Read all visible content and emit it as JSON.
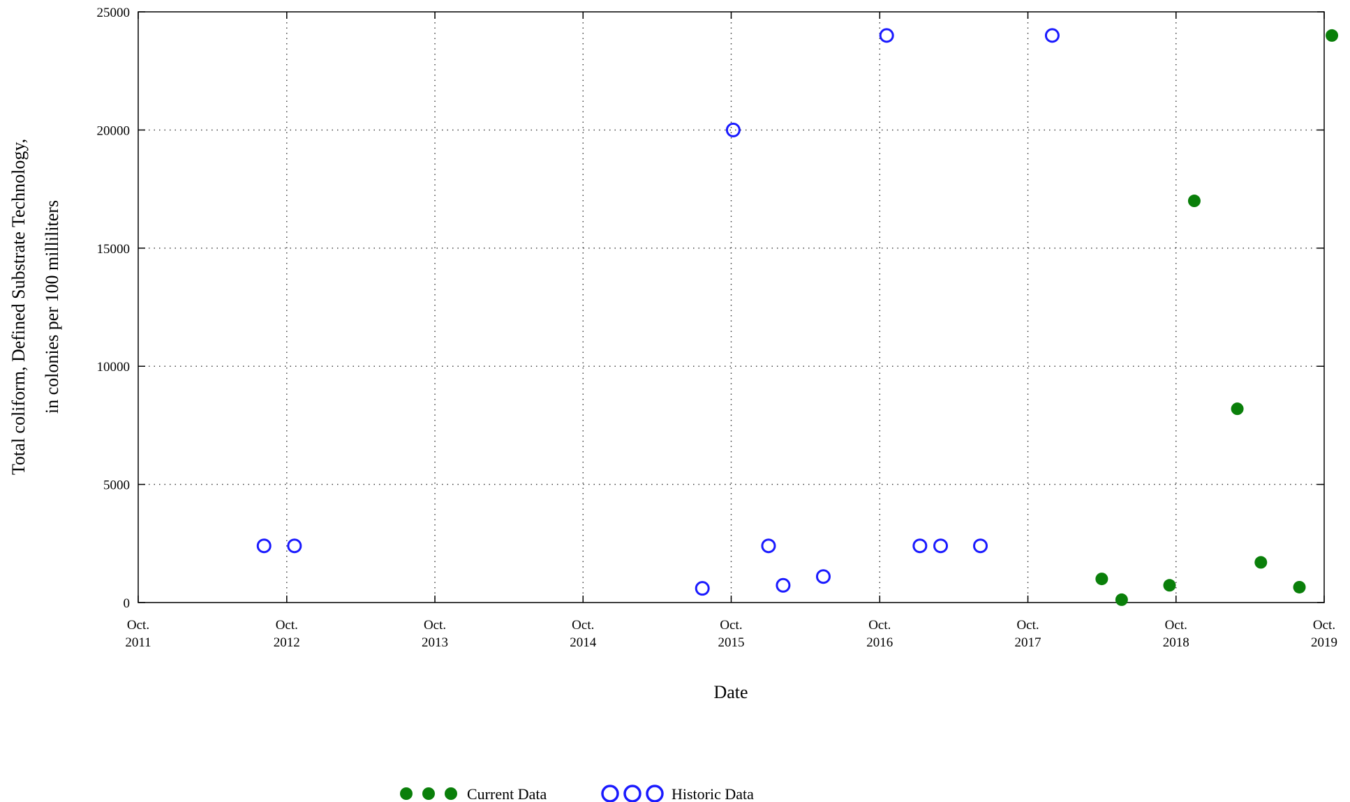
{
  "chart_data": {
    "type": "scatter",
    "title": "",
    "xlabel": "Date",
    "ylabel_lines": [
      "Total coliform, Defined Substrate Technology,",
      "in colonies per 100 milliliters"
    ],
    "xlim": [
      "2011-10-01",
      "2019-10-01"
    ],
    "ylim": [
      0,
      25000
    ],
    "grid": true,
    "grid_style": "dotted",
    "legend_position": "bottom-center",
    "x_ticks": [
      {
        "date": "2011-10-01",
        "line1": "Oct.",
        "line2": "2011"
      },
      {
        "date": "2012-10-01",
        "line1": "Oct.",
        "line2": "2012"
      },
      {
        "date": "2013-10-01",
        "line1": "Oct.",
        "line2": "2013"
      },
      {
        "date": "2014-10-01",
        "line1": "Oct.",
        "line2": "2014"
      },
      {
        "date": "2015-10-01",
        "line1": "Oct.",
        "line2": "2015"
      },
      {
        "date": "2016-10-01",
        "line1": "Oct.",
        "line2": "2016"
      },
      {
        "date": "2017-10-01",
        "line1": "Oct.",
        "line2": "2017"
      },
      {
        "date": "2018-10-01",
        "line1": "Oct.",
        "line2": "2018"
      },
      {
        "date": "2019-10-01",
        "line1": "Oct.",
        "line2": "2019"
      }
    ],
    "y_ticks": [
      0,
      5000,
      10000,
      15000,
      20000,
      25000
    ],
    "series": [
      {
        "name": "Historic Data",
        "marker": "open-circle",
        "color": "#1a1aff",
        "points": [
          {
            "x": "2012-08-06",
            "y": 2400
          },
          {
            "x": "2012-10-20",
            "y": 2400
          },
          {
            "x": "2015-07-22",
            "y": 600
          },
          {
            "x": "2015-10-06",
            "y": 20000
          },
          {
            "x": "2016-01-01",
            "y": 2400
          },
          {
            "x": "2016-02-06",
            "y": 730
          },
          {
            "x": "2016-05-15",
            "y": 1100
          },
          {
            "x": "2016-10-18",
            "y": 24000
          },
          {
            "x": "2017-01-08",
            "y": 2400
          },
          {
            "x": "2017-02-28",
            "y": 2400
          },
          {
            "x": "2017-06-06",
            "y": 2400
          },
          {
            "x": "2017-11-30",
            "y": 24000
          }
        ]
      },
      {
        "name": "Current Data",
        "marker": "filled-circle",
        "color": "#0a7f0a",
        "points": [
          {
            "x": "2018-04-01",
            "y": 1000
          },
          {
            "x": "2018-05-20",
            "y": 120
          },
          {
            "x": "2018-09-15",
            "y": 730
          },
          {
            "x": "2018-11-15",
            "y": 17000
          },
          {
            "x": "2019-03-01",
            "y": 8200
          },
          {
            "x": "2019-04-28",
            "y": 1700
          },
          {
            "x": "2019-08-01",
            "y": 650
          },
          {
            "x": "2019-10-20",
            "y": 24000
          }
        ]
      }
    ]
  }
}
